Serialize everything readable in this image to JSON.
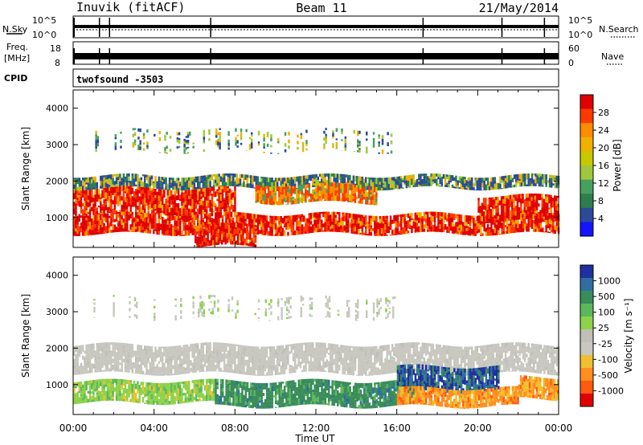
{
  "header": {
    "title_left": "Inuvik (fitACF)",
    "title_center": "Beam 11",
    "title_right": "21/May/2014"
  },
  "strips": {
    "nsky": {
      "left_label": "N.Sky",
      "right_label": "N.Search",
      "tick_top": "10^5",
      "tick_bottom": "10^0"
    },
    "freq": {
      "left_label_1": "Freq.",
      "left_label_2": "[MHz]",
      "left_tick_top": "18",
      "left_tick_bottom": "8",
      "right_label": "Nave",
      "right_tick_top": "60",
      "right_tick_bottom": "0"
    },
    "cpid": {
      "label": "CPID",
      "value": "twofsound  -3503"
    }
  },
  "colorbars": {
    "power": {
      "label": "Power [dB]",
      "ticks": [
        "28",
        "24",
        "20",
        "16",
        "12",
        "8",
        "4"
      ],
      "colors": [
        "#e00000",
        "#ff3a00",
        "#ff8c00",
        "#f0b000",
        "#c8c800",
        "#a0c83c",
        "#48a060",
        "#2e7d4e",
        "#2c4a9a",
        "#1414ff"
      ]
    },
    "velocity": {
      "label": "Velocity [m s⁻¹]",
      "ticks": [
        "1000",
        "500",
        "100",
        "25",
        "-25",
        "-100",
        "-500",
        "-1000"
      ],
      "colors": [
        "#2030a0",
        "#2f6fa0",
        "#3a8c5a",
        "#5cb85c",
        "#8ed24a",
        "#c0c0b8",
        "#c8c8c0",
        "#f0c030",
        "#ff9020",
        "#ff5a10",
        "#e00000"
      ]
    }
  },
  "chart_data": [
    {
      "type": "heatmap",
      "name": "power-panel",
      "ylabel": "Slant Range [km]",
      "xlabel": "Time UT",
      "xticks": [
        "00:00",
        "04:00",
        "08:00",
        "12:00",
        "16:00",
        "20:00",
        "00:00"
      ],
      "yticks": [
        1000,
        2000,
        3000,
        4000
      ],
      "ylim": [
        180,
        4500
      ],
      "xlim_hours": [
        0,
        24
      ],
      "bands": [
        {
          "t0": 0,
          "t1": 24,
          "r0": 550,
          "r1": 1100,
          "level": "high"
        },
        {
          "t0": 0,
          "t1": 8,
          "r0": 1100,
          "r1": 1800,
          "level": "high"
        },
        {
          "t0": 0,
          "t1": 24,
          "r0": 1800,
          "r1": 2150,
          "level": "low"
        },
        {
          "t0": 9,
          "t1": 15,
          "r0": 1400,
          "r1": 1900,
          "level": "mid"
        },
        {
          "t0": 20,
          "t1": 24,
          "r0": 900,
          "r1": 1600,
          "level": "high"
        },
        {
          "t0": 6,
          "t1": 9,
          "r0": 200,
          "r1": 800,
          "level": "high"
        },
        {
          "t0": 1,
          "t1": 16,
          "r0": 2800,
          "r1": 3400,
          "level": "sparse"
        }
      ]
    },
    {
      "type": "heatmap",
      "name": "velocity-panel",
      "ylabel": "Slant Range [km]",
      "xlabel": "Time UT",
      "xticks": [
        "00:00",
        "04:00",
        "08:00",
        "12:00",
        "16:00",
        "20:00",
        "00:00"
      ],
      "yticks": [
        1000,
        2000,
        3000,
        4000
      ],
      "ylim": [
        180,
        4500
      ],
      "xlim_hours": [
        0,
        24
      ],
      "bands": [
        {
          "t0": 0,
          "t1": 24,
          "r0": 1300,
          "r1": 2100,
          "level": "ground"
        },
        {
          "t0": 0,
          "t1": 7,
          "r0": 500,
          "r1": 1100,
          "level": "lightgreen"
        },
        {
          "t0": 7,
          "t1": 17,
          "r0": 400,
          "r1": 1100,
          "level": "darkgreen"
        },
        {
          "t0": 16,
          "t1": 21,
          "r0": 800,
          "r1": 1500,
          "level": "blue"
        },
        {
          "t0": 16,
          "t1": 22,
          "r0": 400,
          "r1": 900,
          "level": "orange"
        },
        {
          "t0": 22,
          "t1": 24,
          "r0": 600,
          "r1": 1200,
          "level": "orange"
        },
        {
          "t0": 1,
          "t1": 16,
          "r0": 2800,
          "r1": 3400,
          "level": "sparse-ground"
        }
      ]
    }
  ]
}
